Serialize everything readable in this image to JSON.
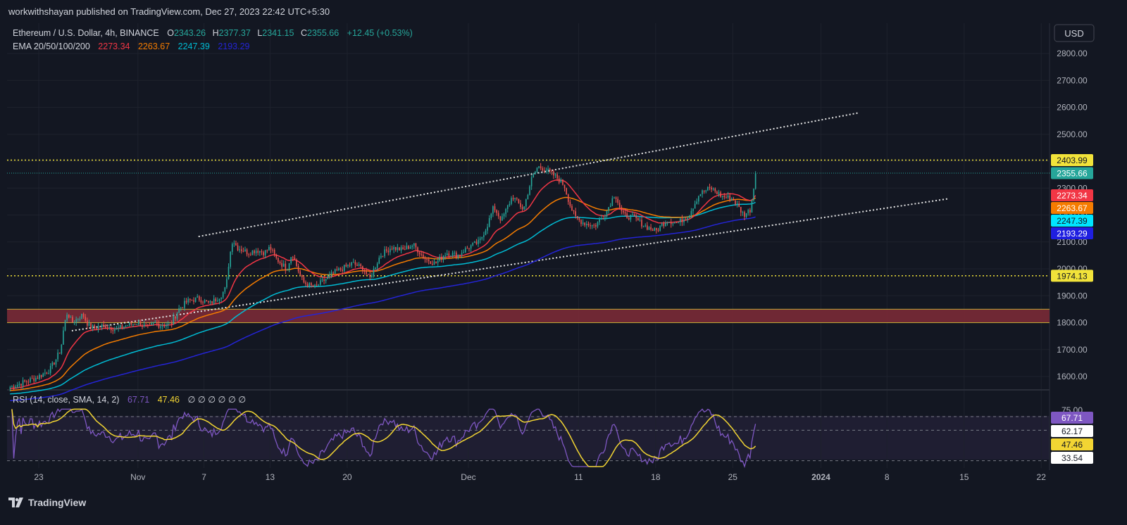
{
  "publisher": "workwithshayan published on TradingView.com, Dec 27, 2023 22:42 UTC+5:30",
  "brand": "TradingView",
  "currency_button": "USD",
  "colors": {
    "background": "#131722",
    "up": "#26a69a",
    "down": "#ef5350",
    "ema20": "#f23645",
    "ema50": "#f57c00",
    "ema100": "#00bcd4",
    "ema200": "#2424d6",
    "rsi": "#7e57c2",
    "rsi_ma": "#f2d533",
    "zone": "#7a2a36",
    "level": "#f2e33a"
  },
  "legend": {
    "symbol": "Ethereum / U.S. Dollar, 4h, BINANCE",
    "o_label": "O",
    "o_value": "2343.26",
    "h_label": "H",
    "h_value": "2377.37",
    "l_label": "L",
    "l_value": "2341.15",
    "c_label": "C",
    "c_value": "2355.66",
    "change": "+12.45 (+0.53%)",
    "ema_title": "EMA 20/50/100/200",
    "ema20": "2273.34",
    "ema50": "2263.67",
    "ema100": "2247.39",
    "ema200": "2193.29"
  },
  "rsi_legend": {
    "title": "RSI (14, close, SMA, 14, 2)",
    "rsi_value": "67.71",
    "ma_value": "47.46",
    "extra": "∅ ∅ ∅ ∅ ∅ ∅"
  },
  "price_labels": {
    "level_high": "2403.99",
    "last": "2355.66",
    "ema20": "2273.34",
    "ema50": "2263.67",
    "ema100": "2247.39",
    "ema200": "2193.29",
    "level_low": "1974.13"
  },
  "rsi_labels": {
    "top": "75.00",
    "rsi": "67.71",
    "mid": "62.17",
    "ma": "47.46",
    "low": "33.54"
  },
  "chart_data": {
    "type": "candlestick",
    "title": "Ethereum / U.S. Dollar, 4h, BINANCE",
    "y_axis": {
      "ticks": [
        "1600.00",
        "1700.00",
        "1800.00",
        "1900.00",
        "2000.00",
        "2100.00",
        "2200.00",
        "2300.00",
        "2400.00",
        "2500.00",
        "2600.00",
        "2700.00",
        "2800.00"
      ],
      "range": [
        1560,
        2830
      ]
    },
    "x_axis": {
      "ticks": [
        {
          "label": "23",
          "day": 0
        },
        {
          "label": "Nov",
          "day": 9
        },
        {
          "label": "7",
          "day": 15
        },
        {
          "label": "13",
          "day": 21
        },
        {
          "label": "20",
          "day": 28
        },
        {
          "label": "Dec",
          "day": 39
        },
        {
          "label": "11",
          "day": 49
        },
        {
          "label": "18",
          "day": 56
        },
        {
          "label": "25",
          "day": 63
        },
        {
          "label": "2024",
          "day": 71
        },
        {
          "label": "8",
          "day": 77
        },
        {
          "label": "15",
          "day": 84
        },
        {
          "label": "22",
          "day": 91
        }
      ]
    },
    "close_path": [
      [
        0,
        1600
      ],
      [
        1,
        1625
      ],
      [
        1.5,
        1660
      ],
      [
        2,
        1700
      ],
      [
        2.3,
        1790
      ],
      [
        2.6,
        1840
      ],
      [
        3,
        1800
      ],
      [
        4,
        1830
      ],
      [
        4.5,
        1790
      ],
      [
        5,
        1780
      ],
      [
        6,
        1790
      ],
      [
        7,
        1775
      ],
      [
        8,
        1790
      ],
      [
        9,
        1800
      ],
      [
        10,
        1780
      ],
      [
        10.5,
        1800
      ],
      [
        11,
        1790
      ],
      [
        12,
        1795
      ],
      [
        12.7,
        1850
      ],
      [
        13.5,
        1880
      ],
      [
        14.5,
        1890
      ],
      [
        15.5,
        1870
      ],
      [
        16.5,
        1900
      ],
      [
        17,
        1930
      ],
      [
        17.3,
        2040
      ],
      [
        17.6,
        2110
      ],
      [
        18,
        2080
      ],
      [
        19,
        2060
      ],
      [
        19.8,
        2070
      ],
      [
        20.5,
        2060
      ],
      [
        21,
        2080
      ],
      [
        21.5,
        2040
      ],
      [
        22.5,
        2000
      ],
      [
        23,
        2060
      ],
      [
        23.5,
        2000
      ],
      [
        24,
        1950
      ],
      [
        25,
        1930
      ],
      [
        26,
        1960
      ],
      [
        27,
        1990
      ],
      [
        28.5,
        2020
      ],
      [
        29.5,
        2000
      ],
      [
        30,
        1960
      ],
      [
        31,
        2050
      ],
      [
        32,
        2080
      ],
      [
        33,
        2070
      ],
      [
        34,
        2090
      ],
      [
        35,
        2040
      ],
      [
        36,
        2020
      ],
      [
        37,
        2060
      ],
      [
        38,
        2050
      ],
      [
        39,
        2080
      ],
      [
        40,
        2100
      ],
      [
        40.7,
        2160
      ],
      [
        41.3,
        2230
      ],
      [
        42,
        2180
      ],
      [
        43,
        2270
      ],
      [
        44,
        2220
      ],
      [
        44.7,
        2330
      ],
      [
        45.3,
        2380
      ],
      [
        46,
        2370
      ],
      [
        47,
        2340
      ],
      [
        47.7,
        2310
      ],
      [
        48.2,
        2240
      ],
      [
        48.7,
        2190
      ],
      [
        49.5,
        2170
      ],
      [
        50.5,
        2160
      ],
      [
        51.5,
        2210
      ],
      [
        52.3,
        2280
      ],
      [
        53,
        2200
      ],
      [
        54,
        2190
      ],
      [
        55,
        2160
      ],
      [
        56,
        2140
      ],
      [
        57,
        2180
      ],
      [
        58,
        2170
      ],
      [
        59,
        2200
      ],
      [
        60,
        2280
      ],
      [
        61,
        2300
      ],
      [
        62,
        2270
      ],
      [
        63,
        2260
      ],
      [
        64,
        2200
      ],
      [
        64.6,
        2220
      ],
      [
        65,
        2330
      ],
      [
        65.2,
        2355
      ]
    ],
    "ema20": "2273.34",
    "ema50": "2263.67",
    "ema100": "2247.39",
    "ema200": "2193.29",
    "levels": [
      2403.99,
      1974.13
    ],
    "zone": [
      1800,
      1850
    ],
    "channel": {
      "upper": [
        [
          14.5,
          2120
        ],
        [
          74.5,
          2580
        ]
      ],
      "lower": [
        [
          3,
          1770
        ],
        [
          82.5,
          2260
        ]
      ]
    },
    "rsi": {
      "levels": [
        75.0,
        62.17,
        33.54
      ],
      "last": 67.71,
      "ma_last": 47.46,
      "range": [
        28,
        82
      ]
    }
  }
}
